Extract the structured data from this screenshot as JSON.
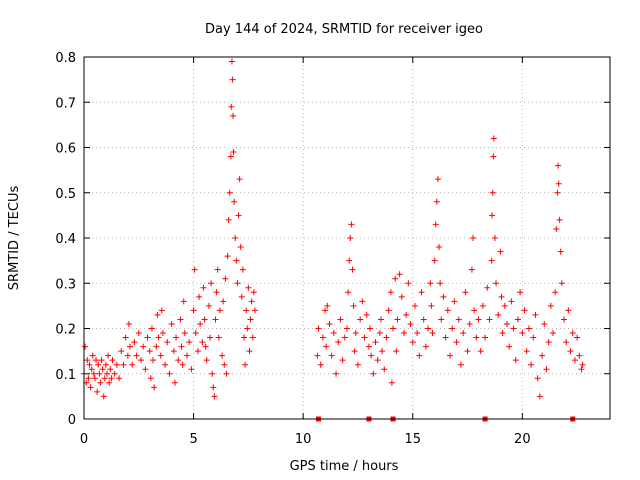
{
  "chart_data": {
    "type": "scatter",
    "title": "Day 144 of 2024, SRMTID for receiver igeo",
    "xlabel": "GPS time / hours",
    "ylabel": "SRMTID / TECUs",
    "xlim": [
      0,
      24
    ],
    "ylim": [
      0,
      0.8
    ],
    "xticks": [
      0,
      5,
      10,
      15,
      20
    ],
    "yticks": [
      0,
      0.1,
      0.2,
      0.3,
      0.4,
      0.5,
      0.6,
      0.7,
      0.8
    ],
    "xtick_labels": [
      "0",
      "5",
      "10",
      "15",
      "20"
    ],
    "ytick_labels": [
      "0",
      "0.1",
      "0.2",
      "0.3",
      "0.4",
      "0.5",
      "0.6",
      "0.7",
      "0.8"
    ],
    "grid": true,
    "color": "#ff0000",
    "marker": "plus",
    "zero_markers_x": [
      10.7,
      13.0,
      14.1,
      18.3,
      22.3
    ],
    "series": [
      {
        "name": "SRMTID",
        "points": [
          [
            0.0,
            0.1
          ],
          [
            0.05,
            0.16
          ],
          [
            0.1,
            0.08
          ],
          [
            0.15,
            0.13
          ],
          [
            0.2,
            0.09
          ],
          [
            0.25,
            0.12
          ],
          [
            0.3,
            0.07
          ],
          [
            0.35,
            0.11
          ],
          [
            0.4,
            0.14
          ],
          [
            0.45,
            0.1
          ],
          [
            0.5,
            0.09
          ],
          [
            0.55,
            0.13
          ],
          [
            0.6,
            0.06
          ],
          [
            0.65,
            0.12
          ],
          [
            0.7,
            0.1
          ],
          [
            0.75,
            0.08
          ],
          [
            0.8,
            0.13
          ],
          [
            0.85,
            0.11
          ],
          [
            0.9,
            0.05
          ],
          [
            0.95,
            0.09
          ],
          [
            1.0,
            0.12
          ],
          [
            1.05,
            0.1
          ],
          [
            1.1,
            0.14
          ],
          [
            1.15,
            0.08
          ],
          [
            1.2,
            0.11
          ],
          [
            1.25,
            0.09
          ],
          [
            1.3,
            0.13
          ],
          [
            1.4,
            0.1
          ],
          [
            1.5,
            0.12
          ],
          [
            1.6,
            0.09
          ],
          [
            1.7,
            0.15
          ],
          [
            1.8,
            0.12
          ],
          [
            1.9,
            0.18
          ],
          [
            2.0,
            0.14
          ],
          [
            2.05,
            0.21
          ],
          [
            2.1,
            0.16
          ],
          [
            2.2,
            0.12
          ],
          [
            2.3,
            0.17
          ],
          [
            2.4,
            0.14
          ],
          [
            2.5,
            0.19
          ],
          [
            2.6,
            0.13
          ],
          [
            2.7,
            0.16
          ],
          [
            2.8,
            0.11
          ],
          [
            2.9,
            0.18
          ],
          [
            3.0,
            0.15
          ],
          [
            3.05,
            0.09
          ],
          [
            3.1,
            0.2
          ],
          [
            3.15,
            0.13
          ],
          [
            3.2,
            0.07
          ],
          [
            3.3,
            0.16
          ],
          [
            3.35,
            0.23
          ],
          [
            3.4,
            0.18
          ],
          [
            3.5,
            0.14
          ],
          [
            3.55,
            0.24
          ],
          [
            3.6,
            0.19
          ],
          [
            3.7,
            0.12
          ],
          [
            3.8,
            0.17
          ],
          [
            3.9,
            0.1
          ],
          [
            4.0,
            0.21
          ],
          [
            4.1,
            0.15
          ],
          [
            4.15,
            0.08
          ],
          [
            4.2,
            0.18
          ],
          [
            4.3,
            0.13
          ],
          [
            4.4,
            0.22
          ],
          [
            4.45,
            0.16
          ],
          [
            4.5,
            0.12
          ],
          [
            4.55,
            0.26
          ],
          [
            4.6,
            0.19
          ],
          [
            4.7,
            0.14
          ],
          [
            4.8,
            0.17
          ],
          [
            4.9,
            0.11
          ],
          [
            5.0,
            0.24
          ],
          [
            5.05,
            0.33
          ],
          [
            5.1,
            0.19
          ],
          [
            5.2,
            0.15
          ],
          [
            5.25,
            0.27
          ],
          [
            5.3,
            0.21
          ],
          [
            5.4,
            0.17
          ],
          [
            5.45,
            0.29
          ],
          [
            5.5,
            0.22
          ],
          [
            5.55,
            0.16
          ],
          [
            5.6,
            0.13
          ],
          [
            5.7,
            0.25
          ],
          [
            5.75,
            0.18
          ],
          [
            5.8,
            0.3
          ],
          [
            5.85,
            0.1
          ],
          [
            5.9,
            0.07
          ],
          [
            5.95,
            0.05
          ],
          [
            6.0,
            0.22
          ],
          [
            6.05,
            0.28
          ],
          [
            6.1,
            0.33
          ],
          [
            6.15,
            0.18
          ],
          [
            6.2,
            0.24
          ],
          [
            6.3,
            0.14
          ],
          [
            6.35,
            0.26
          ],
          [
            6.4,
            0.12
          ],
          [
            6.45,
            0.31
          ],
          [
            6.5,
            0.1
          ],
          [
            6.55,
            0.36
          ],
          [
            6.6,
            0.44
          ],
          [
            6.65,
            0.5
          ],
          [
            6.7,
            0.58
          ],
          [
            6.72,
            0.69
          ],
          [
            6.75,
            0.79
          ],
          [
            6.78,
            0.75
          ],
          [
            6.8,
            0.67
          ],
          [
            6.82,
            0.59
          ],
          [
            6.85,
            0.48
          ],
          [
            6.9,
            0.4
          ],
          [
            6.95,
            0.35
          ],
          [
            7.0,
            0.3
          ],
          [
            7.05,
            0.45
          ],
          [
            7.1,
            0.53
          ],
          [
            7.15,
            0.38
          ],
          [
            7.2,
            0.27
          ],
          [
            7.25,
            0.33
          ],
          [
            7.3,
            0.18
          ],
          [
            7.35,
            0.12
          ],
          [
            7.4,
            0.24
          ],
          [
            7.45,
            0.2
          ],
          [
            7.5,
            0.29
          ],
          [
            7.55,
            0.15
          ],
          [
            7.6,
            0.22
          ],
          [
            7.65,
            0.26
          ],
          [
            7.7,
            0.18
          ],
          [
            7.75,
            0.28
          ],
          [
            7.8,
            0.24
          ],
          [
            10.65,
            0.14
          ],
          [
            10.7,
            0.2
          ],
          [
            10.8,
            0.12
          ],
          [
            10.9,
            0.18
          ],
          [
            11.0,
            0.24
          ],
          [
            11.05,
            0.16
          ],
          [
            11.1,
            0.25
          ],
          [
            11.2,
            0.21
          ],
          [
            11.3,
            0.14
          ],
          [
            11.4,
            0.19
          ],
          [
            11.5,
            0.1
          ],
          [
            11.6,
            0.17
          ],
          [
            11.7,
            0.22
          ],
          [
            11.8,
            0.13
          ],
          [
            11.9,
            0.18
          ],
          [
            12.0,
            0.2
          ],
          [
            12.05,
            0.28
          ],
          [
            12.1,
            0.35
          ],
          [
            12.15,
            0.4
          ],
          [
            12.2,
            0.43
          ],
          [
            12.25,
            0.33
          ],
          [
            12.3,
            0.25
          ],
          [
            12.35,
            0.15
          ],
          [
            12.4,
            0.19
          ],
          [
            12.5,
            0.12
          ],
          [
            12.6,
            0.22
          ],
          [
            12.7,
            0.26
          ],
          [
            12.8,
            0.18
          ],
          [
            12.9,
            0.23
          ],
          [
            13.0,
            0.16
          ],
          [
            13.05,
            0.2
          ],
          [
            13.1,
            0.14
          ],
          [
            13.2,
            0.1
          ],
          [
            13.3,
            0.17
          ],
          [
            13.4,
            0.13
          ],
          [
            13.5,
            0.19
          ],
          [
            13.55,
            0.22
          ],
          [
            13.6,
            0.15
          ],
          [
            13.7,
            0.11
          ],
          [
            13.8,
            0.18
          ],
          [
            13.9,
            0.24
          ],
          [
            14.0,
            0.28
          ],
          [
            14.05,
            0.08
          ],
          [
            14.1,
            0.2
          ],
          [
            14.2,
            0.31
          ],
          [
            14.25,
            0.15
          ],
          [
            14.3,
            0.22
          ],
          [
            14.4,
            0.32
          ],
          [
            14.5,
            0.27
          ],
          [
            14.6,
            0.19
          ],
          [
            14.7,
            0.23
          ],
          [
            14.8,
            0.3
          ],
          [
            14.9,
            0.21
          ],
          [
            15.0,
            0.17
          ],
          [
            15.1,
            0.25
          ],
          [
            15.2,
            0.19
          ],
          [
            15.3,
            0.14
          ],
          [
            15.4,
            0.28
          ],
          [
            15.5,
            0.22
          ],
          [
            15.6,
            0.16
          ],
          [
            15.7,
            0.2
          ],
          [
            15.8,
            0.3
          ],
          [
            15.85,
            0.25
          ],
          [
            15.9,
            0.19
          ],
          [
            16.0,
            0.35
          ],
          [
            16.05,
            0.43
          ],
          [
            16.1,
            0.48
          ],
          [
            16.15,
            0.53
          ],
          [
            16.2,
            0.38
          ],
          [
            16.25,
            0.3
          ],
          [
            16.3,
            0.22
          ],
          [
            16.4,
            0.27
          ],
          [
            16.5,
            0.18
          ],
          [
            16.6,
            0.24
          ],
          [
            16.7,
            0.14
          ],
          [
            16.8,
            0.2
          ],
          [
            16.9,
            0.26
          ],
          [
            17.0,
            0.17
          ],
          [
            17.1,
            0.22
          ],
          [
            17.2,
            0.12
          ],
          [
            17.3,
            0.19
          ],
          [
            17.4,
            0.28
          ],
          [
            17.5,
            0.15
          ],
          [
            17.6,
            0.21
          ],
          [
            17.7,
            0.33
          ],
          [
            17.75,
            0.4
          ],
          [
            17.8,
            0.24
          ],
          [
            17.9,
            0.18
          ],
          [
            18.0,
            0.22
          ],
          [
            18.1,
            0.15
          ],
          [
            18.2,
            0.25
          ],
          [
            18.3,
            0.18
          ],
          [
            18.4,
            0.29
          ],
          [
            18.5,
            0.22
          ],
          [
            18.6,
            0.35
          ],
          [
            18.62,
            0.45
          ],
          [
            18.65,
            0.5
          ],
          [
            18.68,
            0.58
          ],
          [
            18.7,
            0.62
          ],
          [
            18.75,
            0.4
          ],
          [
            18.8,
            0.3
          ],
          [
            18.9,
            0.23
          ],
          [
            19.0,
            0.37
          ],
          [
            19.05,
            0.27
          ],
          [
            19.1,
            0.19
          ],
          [
            19.2,
            0.25
          ],
          [
            19.3,
            0.21
          ],
          [
            19.4,
            0.16
          ],
          [
            19.5,
            0.26
          ],
          [
            19.6,
            0.2
          ],
          [
            19.7,
            0.13
          ],
          [
            19.8,
            0.22
          ],
          [
            19.9,
            0.28
          ],
          [
            20.0,
            0.19
          ],
          [
            20.1,
            0.24
          ],
          [
            20.2,
            0.15
          ],
          [
            20.3,
            0.2
          ],
          [
            20.4,
            0.12
          ],
          [
            20.5,
            0.18
          ],
          [
            20.6,
            0.23
          ],
          [
            20.7,
            0.09
          ],
          [
            20.8,
            0.05
          ],
          [
            20.9,
            0.14
          ],
          [
            21.0,
            0.21
          ],
          [
            21.1,
            0.11
          ],
          [
            21.2,
            0.17
          ],
          [
            21.3,
            0.25
          ],
          [
            21.4,
            0.19
          ],
          [
            21.5,
            0.28
          ],
          [
            21.55,
            0.42
          ],
          [
            21.6,
            0.5
          ],
          [
            21.63,
            0.56
          ],
          [
            21.66,
            0.52
          ],
          [
            21.7,
            0.44
          ],
          [
            21.75,
            0.37
          ],
          [
            21.8,
            0.3
          ],
          [
            21.9,
            0.22
          ],
          [
            22.0,
            0.17
          ],
          [
            22.1,
            0.24
          ],
          [
            22.2,
            0.15
          ],
          [
            22.3,
            0.19
          ],
          [
            22.4,
            0.13
          ],
          [
            22.5,
            0.18
          ],
          [
            22.6,
            0.14
          ],
          [
            22.7,
            0.11
          ],
          [
            22.75,
            0.12
          ]
        ]
      }
    ]
  }
}
